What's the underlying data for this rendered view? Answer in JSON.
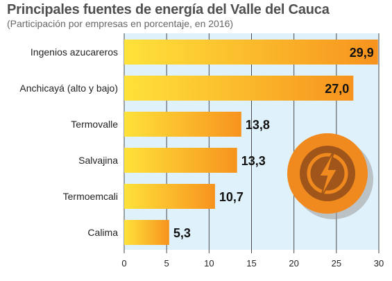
{
  "chart_data": {
    "type": "bar",
    "orientation": "horizontal",
    "title": "Principales fuentes de energía del Valle del Cauca",
    "subtitle": "(Participación por empresas en porcentaje, en 2016)",
    "categories": [
      "Ingenios azucareros",
      "Anchicayá (alto y bajo)",
      "Termovalle",
      "Salvajina",
      "Termoemcali",
      "Calima"
    ],
    "values": [
      29.9,
      27.0,
      13.8,
      13.3,
      10.7,
      5.3
    ],
    "value_labels": [
      "29,9",
      "27,0",
      "13,8",
      "13,3",
      "10,7",
      "5,3"
    ],
    "xlim": [
      0,
      30
    ],
    "xticks": [
      "0",
      "5",
      "10",
      "15",
      "20",
      "25",
      "30"
    ],
    "grid": "vertical",
    "colors": {
      "background": "#dff1fa",
      "bar_start": "#ffe23a",
      "bar_end": "#f7931e",
      "grid": "#4a4a4a",
      "icon_ring": "#f08a1e",
      "icon_inner": "#a0561a",
      "title": "#4f4f4f"
    },
    "icon": "lightning-bolt-icon"
  }
}
